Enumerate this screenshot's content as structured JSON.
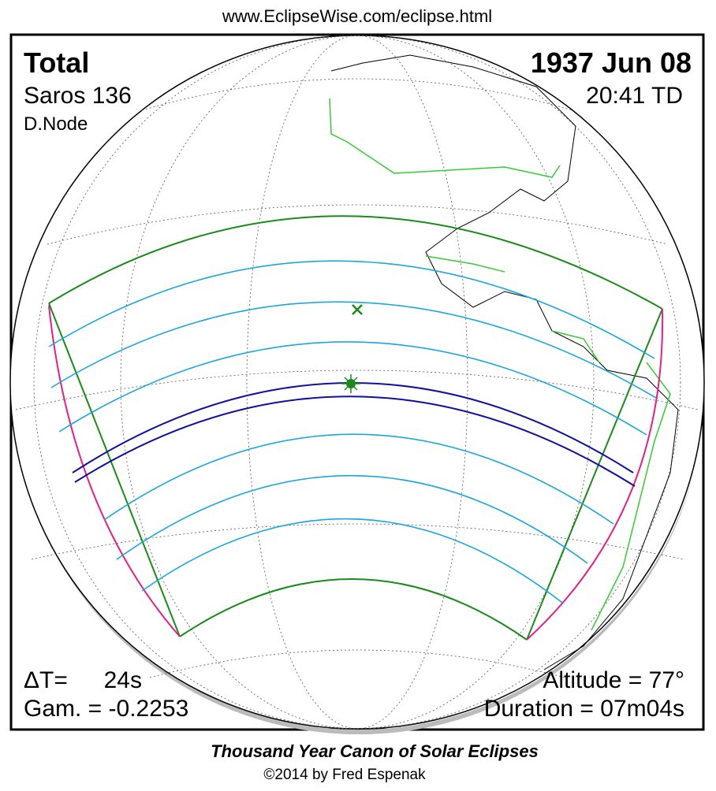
{
  "header": {
    "url": "www.EclipseWise.com/eclipse.html"
  },
  "eclipse": {
    "type": "Total",
    "saros": "Saros 136",
    "node": "D.Node",
    "date": "1937 Jun 08",
    "time": "20:41 TD"
  },
  "parameters": {
    "delta_t_label": "ΔT=",
    "delta_t": "24s",
    "gamma": "Gam. = -0.2253",
    "altitude": "Altitude = 77°",
    "duration": "Duration = 07m04s"
  },
  "footer": {
    "title": "Thousand Year Canon of Solar Eclipses",
    "copyright": "©2014 by Fred Espenak"
  }
}
